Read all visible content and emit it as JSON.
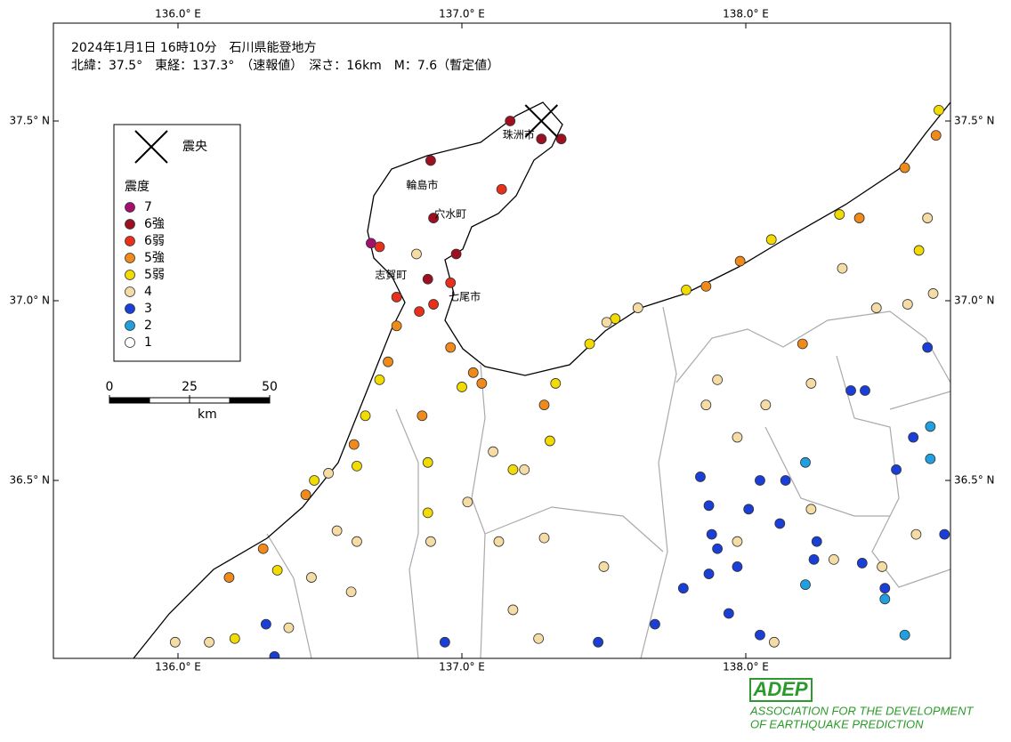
{
  "map": {
    "header": [
      "2024年1月1日 16時10分　石川県能登地方",
      "北緯：37.5°　東経：137.3°　（速報値）　深さ：16km　M：7.6（暫定値）"
    ],
    "lonticks": [
      {
        "value": 136.0,
        "label": "136.0° E"
      },
      {
        "value": 137.0,
        "label": "137.0° E"
      },
      {
        "value": 138.0,
        "label": "138.0° E"
      }
    ],
    "latticks": [
      {
        "value": 37.5,
        "label": "37.5° N"
      },
      {
        "value": 37.0,
        "label": "37.0° N"
      },
      {
        "value": 36.5,
        "label": "36.5° N"
      }
    ],
    "epicenter": {
      "label": "震央",
      "lon": 137.28,
      "lat": 37.5
    },
    "legend_title": "震度",
    "legend": [
      {
        "label": "7",
        "color": "#a3106e"
      },
      {
        "label": "6強",
        "color": "#9e1020"
      },
      {
        "label": "6弱",
        "color": "#e8301a"
      },
      {
        "label": "5強",
        "color": "#f08a1a"
      },
      {
        "label": "5弱",
        "color": "#f2dc00"
      },
      {
        "label": "4",
        "color": "#f5dca5"
      },
      {
        "label": "3",
        "color": "#1a3ed8"
      },
      {
        "label": "2",
        "color": "#20a0e0"
      },
      {
        "label": "1",
        "color": "#ffffff"
      }
    ],
    "cities": [
      {
        "name": "珠洲市",
        "lon": 137.2,
        "lat": 37.46
      },
      {
        "name": "輪島市",
        "lon": 136.86,
        "lat": 37.32
      },
      {
        "name": "穴水町",
        "lon": 136.96,
        "lat": 37.24
      },
      {
        "name": "志賀町",
        "lon": 136.75,
        "lat": 37.07
      },
      {
        "name": "七尾市",
        "lon": 137.01,
        "lat": 37.01
      }
    ],
    "scale": {
      "ticks": [
        0,
        25,
        50
      ],
      "unit": "km"
    },
    "logo": {
      "name": "ADEP",
      "lines": [
        "ASSOCIATION FOR THE DEVELOPMENT",
        "OF EARTHQUAKE PREDICTION"
      ]
    },
    "stations": [
      [
        136.68,
        37.16,
        "7"
      ],
      [
        136.89,
        37.39,
        "6強"
      ],
      [
        137.17,
        37.5,
        "6強"
      ],
      [
        137.28,
        37.45,
        "6強"
      ],
      [
        137.35,
        37.45,
        "6強"
      ],
      [
        136.9,
        37.23,
        "6強"
      ],
      [
        136.98,
        37.13,
        "6強"
      ],
      [
        136.88,
        37.06,
        "6強"
      ],
      [
        136.71,
        37.15,
        "6弱"
      ],
      [
        137.14,
        37.31,
        "6弱"
      ],
      [
        136.77,
        37.01,
        "6弱"
      ],
      [
        136.9,
        36.99,
        "6弱"
      ],
      [
        136.85,
        36.97,
        "6弱"
      ],
      [
        136.96,
        37.05,
        "6弱"
      ],
      [
        136.77,
        36.93,
        "5強"
      ],
      [
        136.74,
        36.83,
        "5強"
      ],
      [
        136.96,
        36.87,
        "5強"
      ],
      [
        137.04,
        36.8,
        "5強"
      ],
      [
        137.07,
        36.77,
        "5強"
      ],
      [
        137.86,
        37.04,
        "5強"
      ],
      [
        137.98,
        37.11,
        "5強"
      ],
      [
        138.2,
        36.88,
        "5強"
      ],
      [
        138.4,
        37.23,
        "5強"
      ],
      [
        138.56,
        37.37,
        "5強"
      ],
      [
        138.67,
        37.46,
        "5強"
      ],
      [
        136.62,
        36.6,
        "5強"
      ],
      [
        136.45,
        36.46,
        "5強"
      ],
      [
        136.3,
        36.31,
        "5強"
      ],
      [
        136.18,
        36.23,
        "5強"
      ],
      [
        136.86,
        36.68,
        "5強"
      ],
      [
        137.29,
        36.71,
        "5強"
      ],
      [
        136.71,
        36.78,
        "5弱"
      ],
      [
        136.66,
        36.68,
        "5弱"
      ],
      [
        137.0,
        36.76,
        "5弱"
      ],
      [
        137.33,
        36.77,
        "5弱"
      ],
      [
        137.54,
        36.95,
        "5弱"
      ],
      [
        137.79,
        37.03,
        "5弱"
      ],
      [
        138.09,
        37.17,
        "5弱"
      ],
      [
        138.33,
        37.24,
        "5弱"
      ],
      [
        138.61,
        37.14,
        "5弱"
      ],
      [
        136.63,
        36.54,
        "5弱"
      ],
      [
        136.48,
        36.5,
        "5弱"
      ],
      [
        136.88,
        36.55,
        "5弱"
      ],
      [
        136.88,
        36.41,
        "5弱"
      ],
      [
        136.35,
        36.25,
        "5弱"
      ],
      [
        136.2,
        36.06,
        "5弱"
      ],
      [
        137.45,
        36.88,
        "5弱"
      ],
      [
        137.18,
        36.53,
        "5弱"
      ],
      [
        137.31,
        36.61,
        "5弱"
      ],
      [
        138.68,
        37.53,
        "5弱"
      ],
      [
        136.84,
        37.13,
        "4"
      ],
      [
        137.62,
        36.98,
        "4"
      ],
      [
        137.51,
        36.94,
        "4"
      ],
      [
        137.11,
        36.58,
        "4"
      ],
      [
        137.22,
        36.53,
        "4"
      ],
      [
        137.02,
        36.44,
        "4"
      ],
      [
        136.53,
        36.52,
        "4"
      ],
      [
        136.56,
        36.36,
        "4"
      ],
      [
        136.63,
        36.33,
        "4"
      ],
      [
        136.61,
        36.19,
        "4"
      ],
      [
        136.47,
        36.23,
        "4"
      ],
      [
        136.11,
        36.05,
        "4"
      ],
      [
        135.99,
        36.05,
        "4"
      ],
      [
        136.39,
        36.09,
        "4"
      ],
      [
        136.89,
        36.33,
        "4"
      ],
      [
        137.13,
        36.33,
        "4"
      ],
      [
        137.29,
        36.34,
        "4"
      ],
      [
        137.18,
        36.14,
        "4"
      ],
      [
        137.27,
        36.06,
        "4"
      ],
      [
        137.5,
        36.26,
        "4"
      ],
      [
        137.86,
        36.71,
        "4"
      ],
      [
        137.9,
        36.78,
        "4"
      ],
      [
        137.97,
        36.62,
        "4"
      ],
      [
        138.07,
        36.71,
        "4"
      ],
      [
        138.23,
        36.77,
        "4"
      ],
      [
        138.46,
        36.98,
        "4"
      ],
      [
        138.57,
        36.99,
        "4"
      ],
      [
        138.66,
        37.02,
        "4"
      ],
      [
        138.34,
        37.09,
        "4"
      ],
      [
        138.64,
        37.23,
        "4"
      ],
      [
        138.1,
        36.05,
        "4"
      ],
      [
        138.23,
        36.42,
        "4"
      ],
      [
        138.31,
        36.28,
        "4"
      ],
      [
        138.48,
        36.26,
        "4"
      ],
      [
        138.6,
        36.35,
        "4"
      ],
      [
        137.97,
        36.33,
        "4"
      ],
      [
        137.84,
        36.51,
        "3"
      ],
      [
        137.87,
        36.43,
        "3"
      ],
      [
        137.88,
        36.35,
        "3"
      ],
      [
        137.9,
        36.31,
        "3"
      ],
      [
        137.97,
        36.26,
        "3"
      ],
      [
        137.78,
        36.2,
        "3"
      ],
      [
        137.87,
        36.24,
        "3"
      ],
      [
        137.94,
        36.13,
        "3"
      ],
      [
        138.01,
        36.42,
        "3"
      ],
      [
        138.05,
        36.5,
        "3"
      ],
      [
        138.14,
        36.5,
        "3"
      ],
      [
        138.12,
        36.38,
        "3"
      ],
      [
        138.25,
        36.33,
        "3"
      ],
      [
        138.37,
        36.75,
        "3"
      ],
      [
        138.42,
        36.75,
        "3"
      ],
      [
        138.64,
        36.87,
        "3"
      ],
      [
        138.59,
        36.62,
        "3"
      ],
      [
        138.53,
        36.53,
        "3"
      ],
      [
        138.49,
        36.2,
        "3"
      ],
      [
        138.24,
        36.28,
        "3"
      ],
      [
        138.41,
        36.27,
        "3"
      ],
      [
        137.68,
        36.1,
        "3"
      ],
      [
        137.48,
        36.05,
        "3"
      ],
      [
        136.94,
        36.05,
        "3"
      ],
      [
        136.31,
        36.1,
        "3"
      ],
      [
        136.34,
        36.01,
        "3"
      ],
      [
        138.05,
        36.07,
        "3"
      ],
      [
        138.7,
        36.35,
        "3"
      ],
      [
        138.21,
        36.55,
        "2"
      ],
      [
        138.65,
        36.65,
        "2"
      ],
      [
        138.49,
        36.17,
        "2"
      ],
      [
        138.56,
        36.07,
        "2"
      ],
      [
        138.65,
        36.56,
        "2"
      ],
      [
        138.21,
        36.21,
        "2"
      ]
    ]
  }
}
